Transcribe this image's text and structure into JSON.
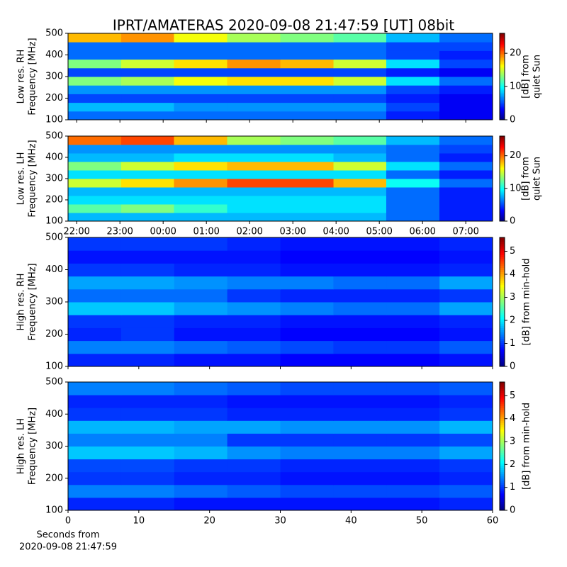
{
  "chart_data": [
    {
      "type": "heatmap",
      "title": "IPRT/AMATERAS 2020-09-08 21:47:59 [UT]   08bit",
      "ylabel": [
        "Low res. RH",
        "Frequency [MHz]"
      ],
      "colorbar_label": [
        "[dB] from",
        "quiet Sun"
      ],
      "xlim": [
        21.8,
        31.62
      ],
      "ylim": [
        100,
        500
      ],
      "zlim": [
        0,
        26
      ],
      "xticks": [
        {
          "value": 22,
          "label": "22:00"
        },
        {
          "value": 23,
          "label": "23:00"
        },
        {
          "value": 24,
          "label": "00:00"
        },
        {
          "value": 25,
          "label": "01:00"
        },
        {
          "value": 26,
          "label": "02:00"
        },
        {
          "value": 27,
          "label": "03:00"
        },
        {
          "value": 28,
          "label": "04:00"
        },
        {
          "value": 29,
          "label": "05:00"
        },
        {
          "value": 30,
          "label": "06:00"
        },
        {
          "value": 31,
          "label": "07:00"
        }
      ],
      "show_xtick_labels": false,
      "yticks": [
        100,
        200,
        300,
        400,
        500
      ],
      "zticks": [
        0,
        10,
        20
      ],
      "x_edges": [
        21.8,
        23.03,
        24.25,
        25.48,
        26.71,
        27.94,
        29.16,
        30.39,
        31.62
      ],
      "y_edges": [
        100,
        140,
        180,
        220,
        260,
        300,
        340,
        380,
        420,
        460,
        500
      ],
      "z": [
        [
          6,
          6,
          6,
          6,
          6,
          6,
          4,
          3
        ],
        [
          8,
          8,
          7,
          7,
          7,
          7,
          5,
          3
        ],
        [
          5,
          5,
          5,
          5,
          5,
          5,
          4,
          3
        ],
        [
          7,
          7,
          7,
          7,
          7,
          7,
          5,
          4
        ],
        [
          13,
          14,
          16,
          17,
          17,
          15,
          9,
          6
        ],
        [
          5,
          5,
          5,
          5,
          5,
          5,
          4,
          3
        ],
        [
          13,
          15,
          17,
          19,
          18,
          15,
          9,
          5
        ],
        [
          6,
          6,
          6,
          6,
          6,
          6,
          5,
          4
        ],
        [
          6,
          6,
          6,
          6,
          6,
          6,
          5,
          5
        ],
        [
          18,
          19,
          16,
          14,
          13,
          12,
          8,
          6
        ]
      ]
    },
    {
      "type": "heatmap",
      "ylabel": [
        "Low res. LH",
        "Frequency [MHz]"
      ],
      "colorbar_label": [
        "[dB] from",
        "quiet Sun"
      ],
      "xlim": [
        21.8,
        31.62
      ],
      "ylim": [
        100,
        500
      ],
      "zlim": [
        0,
        26
      ],
      "xticks": [
        {
          "value": 22,
          "label": "22:00"
        },
        {
          "value": 23,
          "label": "23:00"
        },
        {
          "value": 24,
          "label": "00:00"
        },
        {
          "value": 25,
          "label": "01:00"
        },
        {
          "value": 26,
          "label": "02:00"
        },
        {
          "value": 27,
          "label": "03:00"
        },
        {
          "value": 28,
          "label": "04:00"
        },
        {
          "value": 29,
          "label": "05:00"
        },
        {
          "value": 30,
          "label": "06:00"
        },
        {
          "value": 31,
          "label": "07:00"
        }
      ],
      "show_xtick_labels": true,
      "yticks": [
        100,
        200,
        300,
        400,
        500
      ],
      "zticks": [
        0,
        10,
        20
      ],
      "x_edges": [
        21.8,
        23.03,
        24.25,
        25.48,
        26.71,
        27.94,
        29.16,
        30.39,
        31.62
      ],
      "y_edges": [
        100,
        140,
        180,
        220,
        260,
        300,
        340,
        380,
        420,
        460,
        500
      ],
      "z": [
        [
          8,
          8,
          8,
          8,
          8,
          8,
          6,
          4
        ],
        [
          12,
          13,
          11,
          9,
          9,
          9,
          6,
          4
        ],
        [
          9,
          9,
          9,
          9,
          9,
          9,
          6,
          4
        ],
        [
          8,
          8,
          8,
          8,
          8,
          8,
          6,
          4
        ],
        [
          15,
          17,
          19,
          21,
          21,
          18,
          10,
          6
        ],
        [
          9,
          9,
          9,
          9,
          9,
          9,
          6,
          4
        ],
        [
          13,
          15,
          17,
          18,
          18,
          15,
          9,
          6
        ],
        [
          8,
          8,
          9,
          9,
          9,
          8,
          6,
          4
        ],
        [
          7,
          7,
          7,
          7,
          7,
          7,
          6,
          5
        ],
        [
          20,
          21,
          18,
          14,
          13,
          12,
          8,
          6
        ]
      ]
    },
    {
      "type": "heatmap",
      "ylabel": [
        "High res. RH",
        "Frequency [MHz]"
      ],
      "colorbar_label": [
        "[dB] from min-hold"
      ],
      "xlim": [
        0,
        60
      ],
      "ylim": [
        100,
        500
      ],
      "zlim": [
        0,
        5.6
      ],
      "xticks": [
        0,
        10,
        20,
        30,
        40,
        50,
        60
      ],
      "show_xtick_labels": false,
      "yticks": [
        100,
        200,
        300,
        400,
        500
      ],
      "zticks": [
        0,
        1,
        2,
        3,
        4,
        5
      ],
      "x_edges": [
        0,
        7.5,
        15,
        22.5,
        30,
        37.5,
        45,
        52.5,
        60
      ],
      "y_edges": [
        100,
        140,
        180,
        220,
        260,
        300,
        340,
        380,
        420,
        460,
        500
      ],
      "z": [
        [
          0.9,
          0.9,
          0.8,
          0.8,
          0.7,
          0.7,
          0.7,
          0.8
        ],
        [
          1.4,
          1.4,
          1.3,
          1.2,
          1.1,
          1.0,
          1.0,
          1.2
        ],
        [
          0.9,
          1.0,
          0.8,
          0.8,
          0.7,
          0.7,
          0.7,
          0.8
        ],
        [
          1.0,
          1.0,
          0.9,
          0.9,
          0.8,
          0.8,
          0.8,
          0.9
        ],
        [
          1.8,
          1.8,
          1.6,
          1.5,
          1.4,
          1.3,
          1.3,
          1.6
        ],
        [
          1.3,
          1.3,
          1.3,
          1.0,
          0.9,
          0.9,
          0.9,
          1.0
        ],
        [
          1.6,
          1.6,
          1.5,
          1.4,
          1.4,
          1.3,
          1.3,
          1.6
        ],
        [
          1.0,
          1.0,
          0.9,
          0.9,
          0.8,
          0.8,
          0.8,
          0.9
        ],
        [
          0.8,
          0.8,
          0.8,
          0.8,
          0.7,
          0.7,
          0.7,
          0.8
        ],
        [
          1.0,
          1.0,
          1.0,
          0.9,
          0.8,
          0.8,
          0.8,
          0.9
        ]
      ]
    },
    {
      "type": "heatmap",
      "ylabel": [
        "High res. LH",
        "Frequency [MHz]"
      ],
      "colorbar_label": [
        "[dB] from min-hold"
      ],
      "xlabel": [
        "Seconds from",
        "2020-09-08 21:47:59"
      ],
      "xlim": [
        0,
        60
      ],
      "ylim": [
        100,
        500
      ],
      "zlim": [
        0,
        5.6
      ],
      "xticks": [
        0,
        10,
        20,
        30,
        40,
        50,
        60
      ],
      "show_xtick_labels": true,
      "yticks": [
        100,
        200,
        300,
        400,
        500
      ],
      "zticks": [
        0,
        1,
        2,
        3,
        4,
        5
      ],
      "x_edges": [
        0,
        7.5,
        15,
        22.5,
        30,
        37.5,
        45,
        52.5,
        60
      ],
      "y_edges": [
        100,
        140,
        180,
        220,
        260,
        300,
        340,
        380,
        420,
        460,
        500
      ],
      "z": [
        [
          0.9,
          0.9,
          0.8,
          0.8,
          0.8,
          0.8,
          0.8,
          0.9
        ],
        [
          1.4,
          1.4,
          1.3,
          1.2,
          1.1,
          1.1,
          1.1,
          1.2
        ],
        [
          1.0,
          1.0,
          0.9,
          0.9,
          0.8,
          0.8,
          0.8,
          0.9
        ],
        [
          1.1,
          1.1,
          1.0,
          1.0,
          0.9,
          0.9,
          0.9,
          1.0
        ],
        [
          1.8,
          1.8,
          1.7,
          1.5,
          1.4,
          1.4,
          1.4,
          1.6
        ],
        [
          1.4,
          1.4,
          1.4,
          1.0,
          1.0,
          1.0,
          1.0,
          1.1
        ],
        [
          1.7,
          1.7,
          1.6,
          1.6,
          1.5,
          1.5,
          1.5,
          1.7
        ],
        [
          1.0,
          1.0,
          1.0,
          0.9,
          0.9,
          0.9,
          0.9,
          1.0
        ],
        [
          0.9,
          0.9,
          0.9,
          0.8,
          0.8,
          0.8,
          0.8,
          0.9
        ],
        [
          1.4,
          1.4,
          1.3,
          1.2,
          1.1,
          1.1,
          1.1,
          1.2
        ]
      ]
    }
  ]
}
